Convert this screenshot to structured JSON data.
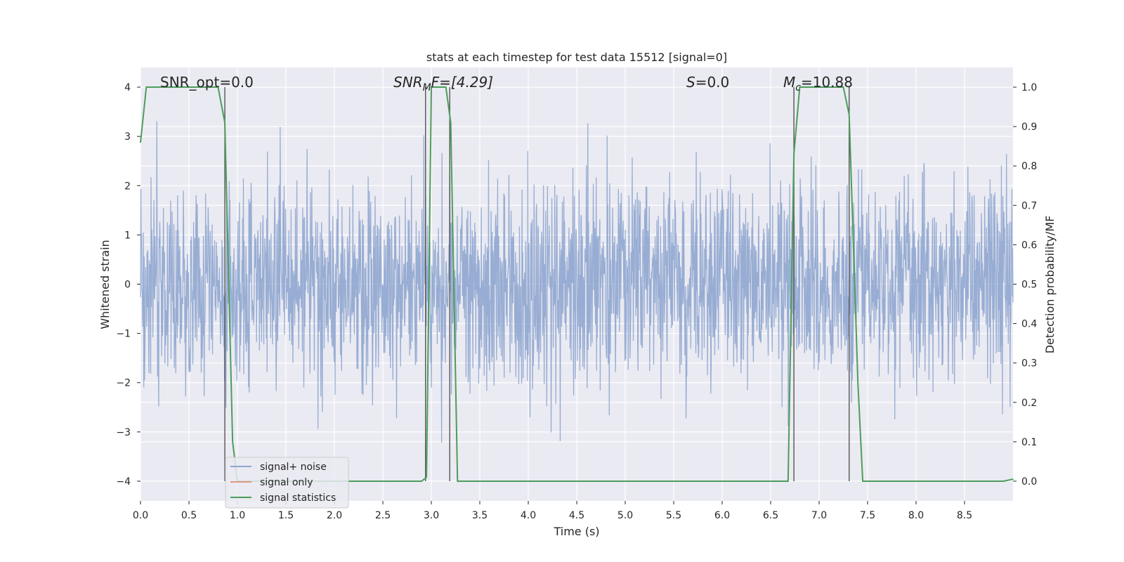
{
  "chart_data": {
    "type": "line",
    "title": "stats at each timestep for test data 15512 [signal=0]",
    "xlabel": "Time (s)",
    "ylabel": "Whitened strain",
    "ylabel_right": "Detection probability/MF",
    "xlim": [
      0.0,
      9.0
    ],
    "ylim": [
      -4.4,
      4.4
    ],
    "ylim_right": [
      -0.05,
      1.05
    ],
    "xticks": [
      "0.0",
      "0.5",
      "1.0",
      "1.5",
      "2.0",
      "2.5",
      "3.0",
      "3.5",
      "4.0",
      "4.5",
      "5.0",
      "5.5",
      "6.0",
      "6.5",
      "7.0",
      "7.5",
      "8.0",
      "8.5"
    ],
    "xtick_values": [
      0.0,
      0.5,
      1.0,
      1.5,
      2.0,
      2.5,
      3.0,
      3.5,
      4.0,
      4.5,
      5.0,
      5.5,
      6.0,
      6.5,
      7.0,
      7.5,
      8.0,
      8.5
    ],
    "yticks": [
      "4",
      "3",
      "2",
      "1",
      "0",
      "−1",
      "−2",
      "−3",
      "−4"
    ],
    "ytick_values": [
      4,
      3,
      2,
      1,
      0,
      -1,
      -2,
      -3,
      -4
    ],
    "yticks_right": [
      "1.0",
      "0.9",
      "0.8",
      "0.7",
      "0.6",
      "0.5",
      "0.4",
      "0.3",
      "0.2",
      "0.1",
      "0.0"
    ],
    "ytick_right_values": [
      1.0,
      0.9,
      0.8,
      0.7,
      0.6,
      0.5,
      0.4,
      0.3,
      0.2,
      0.1,
      0.0
    ],
    "grid": true,
    "legend_placement": "lower-left",
    "legend": [
      {
        "label": "signal+ noise",
        "color": "#8fa6cf"
      },
      {
        "label": "signal only",
        "color": "#dd9a80"
      },
      {
        "label": "signal statistics",
        "color": "#4c9e5a"
      }
    ],
    "annotations": {
      "snr_opt": "SNR_opt=0.0",
      "snr_mf_main": "SNR",
      "snr_mf_sub": "M",
      "snr_mf_rest": "F=[4.29]",
      "s_main": "S",
      "s_rest": "=0.0",
      "mc_main": "M",
      "mc_sub": "c",
      "mc_rest": "=10.88"
    },
    "noise": {
      "color": "#8fa6cf",
      "description_level": "dense whitened noise spanning roughly -4 to 4"
    },
    "detection_statistic": {
      "color": "#4c9e5a",
      "x": [
        0.0,
        0.06,
        0.1,
        0.8,
        0.87,
        0.95,
        1.0,
        2.9,
        2.95,
        3.0,
        3.15,
        3.2,
        3.27,
        3.5,
        6.68,
        6.74,
        6.8,
        7.25,
        7.31,
        7.4,
        7.45,
        8.9,
        9.0
      ],
      "y": [
        0.86,
        1.0,
        1.0,
        1.0,
        0.91,
        0.1,
        0.0,
        0.0,
        0.01,
        1.0,
        1.0,
        0.91,
        0.0,
        0.0,
        0.0,
        0.83,
        1.0,
        1.0,
        0.93,
        0.25,
        0.0,
        0.0,
        0.005
      ]
    },
    "vertical_markers": [
      0.87,
      2.94,
      3.19,
      6.74,
      7.31
    ]
  },
  "colors": {
    "plot_background": "#eaeaf2",
    "grid": "#ffffff",
    "marker_line": "#555555"
  }
}
